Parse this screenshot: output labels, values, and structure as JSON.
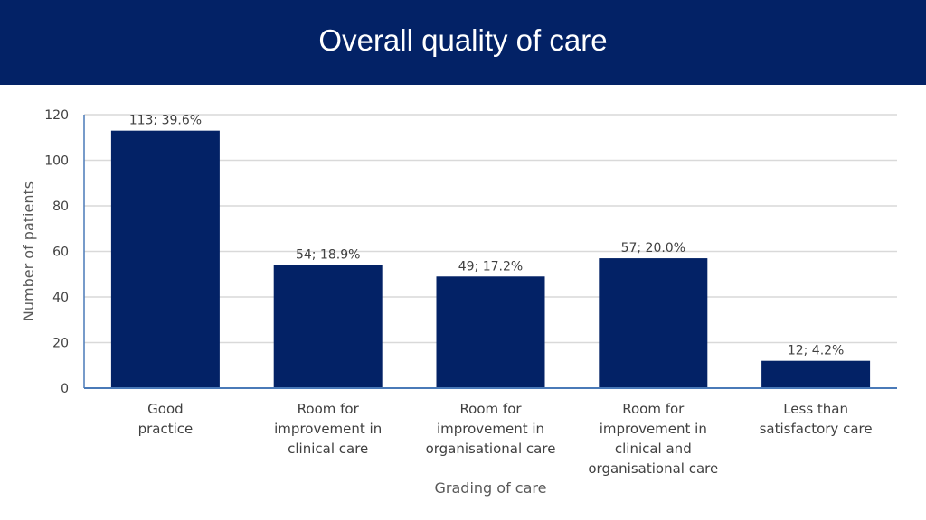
{
  "header": {
    "title": "Overall quality of care"
  },
  "colors": {
    "header_bg": "#032266",
    "bar": "#032266",
    "grid": "#d9d9d9",
    "axis": "#4a7ab8"
  },
  "chart_data": {
    "type": "bar",
    "categories": [
      [
        "Good",
        "practice"
      ],
      [
        "Room for",
        "improvement in",
        "clinical care"
      ],
      [
        "Room for",
        "improvement in",
        "organisational care"
      ],
      [
        "Room for",
        "improvement in",
        "clinical and",
        "organisational care"
      ],
      [
        "Less than",
        "satisfactory care"
      ]
    ],
    "values": [
      113,
      54,
      49,
      57,
      12
    ],
    "data_labels": [
      "113; 39.6%",
      "54; 18.9%",
      "49; 17.2%",
      "57; 20.0%",
      "12; 4.2%"
    ],
    "title": "",
    "xlabel": "Grading of care",
    "ylabel": "Number of patients",
    "ylim": [
      0,
      120
    ],
    "yticks": [
      0,
      20,
      40,
      60,
      80,
      100,
      120
    ],
    "grid": true,
    "legend": "none"
  }
}
